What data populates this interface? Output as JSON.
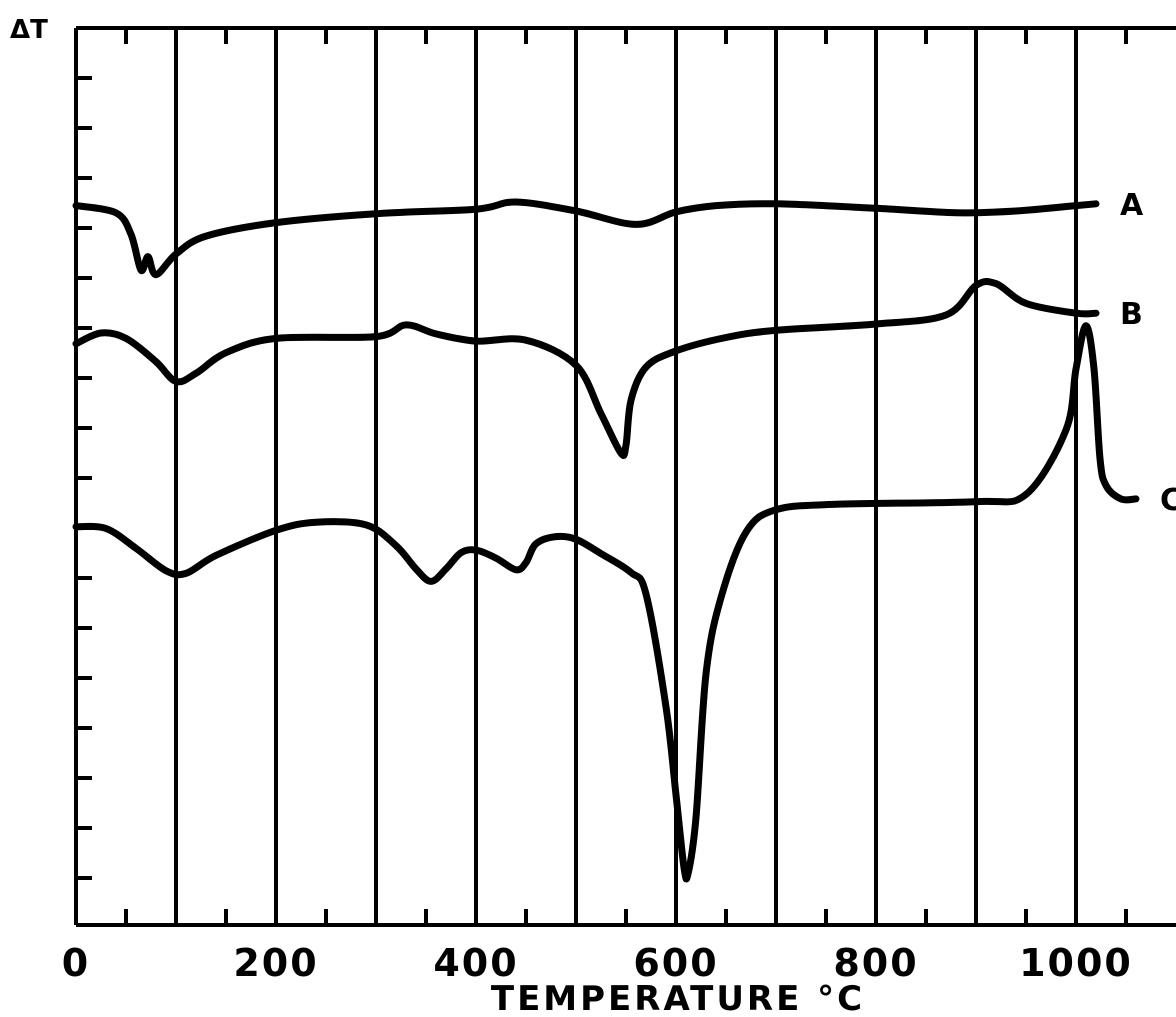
{
  "chart_data": {
    "type": "line",
    "title": "",
    "xlabel": "TEMPERATURE °C",
    "ylabel": "ΔT",
    "xlim": [
      0,
      1100
    ],
    "x_tick_values": [
      0,
      200,
      400,
      600,
      800,
      1000
    ],
    "x_tick_labels": [
      "0",
      "200",
      "400",
      "600",
      "800",
      "1000"
    ],
    "grid": true,
    "y_units": "relative ΔT (arbitrary, 0 = bottom of frame)",
    "series": [
      {
        "name": "A",
        "points": [
          [
            0,
            80.2
          ],
          [
            40,
            79.4
          ],
          [
            55,
            77.0
          ],
          [
            65,
            73.0
          ],
          [
            72,
            74.5
          ],
          [
            80,
            72.5
          ],
          [
            100,
            74.8
          ],
          [
            130,
            76.8
          ],
          [
            200,
            78.3
          ],
          [
            300,
            79.3
          ],
          [
            400,
            79.8
          ],
          [
            440,
            80.6
          ],
          [
            500,
            79.6
          ],
          [
            560,
            78.1
          ],
          [
            600,
            79.5
          ],
          [
            640,
            80.2
          ],
          [
            700,
            80.4
          ],
          [
            800,
            79.9
          ],
          [
            880,
            79.4
          ],
          [
            940,
            79.6
          ],
          [
            1000,
            80.2
          ],
          [
            1020,
            80.4
          ]
        ]
      },
      {
        "name": "B",
        "points": [
          [
            0,
            64.8
          ],
          [
            25,
            66.0
          ],
          [
            50,
            65.4
          ],
          [
            80,
            62.8
          ],
          [
            100,
            60.6
          ],
          [
            120,
            61.5
          ],
          [
            150,
            63.8
          ],
          [
            200,
            65.4
          ],
          [
            300,
            65.6
          ],
          [
            330,
            66.9
          ],
          [
            360,
            65.9
          ],
          [
            400,
            65.1
          ],
          [
            450,
            65.2
          ],
          [
            500,
            62.4
          ],
          [
            525,
            57.0
          ],
          [
            545,
            52.6
          ],
          [
            550,
            53.5
          ],
          [
            555,
            58.5
          ],
          [
            570,
            62.2
          ],
          [
            600,
            64.0
          ],
          [
            650,
            65.5
          ],
          [
            700,
            66.3
          ],
          [
            800,
            67.0
          ],
          [
            870,
            68.0
          ],
          [
            900,
            71.3
          ],
          [
            920,
            71.5
          ],
          [
            950,
            69.3
          ],
          [
            1000,
            68.2
          ],
          [
            1020,
            68.2
          ]
        ]
      },
      {
        "name": "C",
        "points": [
          [
            0,
            44.4
          ],
          [
            30,
            44.2
          ],
          [
            60,
            42.0
          ],
          [
            90,
            39.5
          ],
          [
            110,
            39.2
          ],
          [
            140,
            41.2
          ],
          [
            200,
            44.0
          ],
          [
            240,
            44.9
          ],
          [
            290,
            44.6
          ],
          [
            320,
            42.3
          ],
          [
            340,
            39.7
          ],
          [
            355,
            38.3
          ],
          [
            370,
            39.7
          ],
          [
            385,
            41.5
          ],
          [
            400,
            41.8
          ],
          [
            420,
            40.9
          ],
          [
            440,
            39.6
          ],
          [
            450,
            40.4
          ],
          [
            460,
            42.5
          ],
          [
            480,
            43.3
          ],
          [
            500,
            43.0
          ],
          [
            525,
            41.4
          ],
          [
            555,
            39.3
          ],
          [
            570,
            36.9
          ],
          [
            590,
            24.3
          ],
          [
            600,
            14.5
          ],
          [
            608,
            6.4
          ],
          [
            612,
            5.7
          ],
          [
            620,
            12.0
          ],
          [
            630,
            28.0
          ],
          [
            645,
            36.5
          ],
          [
            670,
            43.8
          ],
          [
            700,
            46.3
          ],
          [
            760,
            46.9
          ],
          [
            900,
            47.2
          ],
          [
            950,
            48.0
          ],
          [
            990,
            55.2
          ],
          [
            1000,
            62.0
          ],
          [
            1010,
            66.8
          ],
          [
            1018,
            62.0
          ],
          [
            1024,
            52.0
          ],
          [
            1030,
            49.0
          ],
          [
            1045,
            47.5
          ],
          [
            1060,
            47.5
          ]
        ]
      }
    ]
  }
}
